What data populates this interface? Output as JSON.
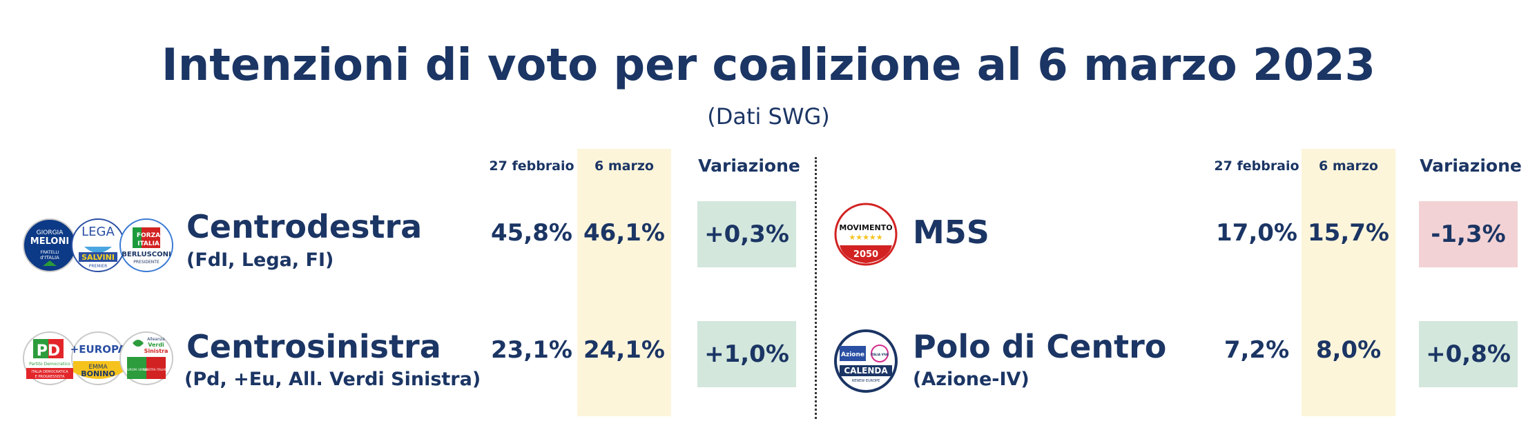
{
  "title": "Intenzioni di voto per coalizione al 6 marzo 2023",
  "subtitle": "(Dati SWG)",
  "headers": {
    "date_prev": "27 febbraio",
    "date_curr": "6 marzo",
    "change": "Variazione"
  },
  "colors": {
    "text": "#1b3564",
    "highlight": "#fdf5da",
    "positive": "#d3e7dc",
    "negative": "#f2d2d4"
  },
  "logos": {
    "meloni": [
      "GIORGIA",
      "MELONI",
      "FRATELLI",
      "d'ITALIA"
    ],
    "lega": [
      "LEGA",
      "SALVINI",
      "PREMIER"
    ],
    "fi": [
      "FORZA",
      "ITALIA",
      "BERLUSCONI",
      "PRESIDENTE"
    ],
    "pd": [
      "PD",
      "Partito Democratico",
      "ITALIA DEMOCRATICA",
      "E PROGRESSISTA"
    ],
    "europa": [
      "+EUROPA",
      "EMMA",
      "BONINO"
    ],
    "avs": [
      "Alleanza",
      "Verdi",
      "Sinistra",
      "EUROPA VERDE",
      "SINISTRA ITALIANA"
    ],
    "m5s": [
      "MOVIMENTO",
      "2050"
    ],
    "azione": [
      "Azione",
      "ITALIA VIVA",
      "CALENDA",
      "RENEW EUROPE"
    ]
  },
  "chart_data": {
    "type": "table",
    "title": "Intenzioni di voto per coalizione al 6 marzo 2023",
    "subtitle": "(Dati SWG)",
    "columns": [
      "27 febbraio",
      "6 marzo",
      "Variazione"
    ],
    "rows": [
      {
        "name": "Centrodestra",
        "detail": "(FdI, Lega, FI)",
        "prev": "45,8%",
        "curr": "46,1%",
        "change": "+0,3%",
        "prev_value": 45.8,
        "curr_value": 46.1,
        "change_value": 0.3
      },
      {
        "name": "Centrosinistra",
        "detail": "(Pd, +Eu, All. Verdi Sinistra)",
        "prev": "23,1%",
        "curr": "24,1%",
        "change": "+1,0%",
        "prev_value": 23.1,
        "curr_value": 24.1,
        "change_value": 1.0
      },
      {
        "name": "M5S",
        "detail": "",
        "prev": "17,0%",
        "curr": "15,7%",
        "change": "-1,3%",
        "prev_value": 17.0,
        "curr_value": 15.7,
        "change_value": -1.3
      },
      {
        "name": "Polo di Centro",
        "detail": "(Azione-IV)",
        "prev": "7,2%",
        "curr": "8,0%",
        "change": "+0,8%",
        "prev_value": 7.2,
        "curr_value": 8.0,
        "change_value": 0.8
      }
    ]
  }
}
